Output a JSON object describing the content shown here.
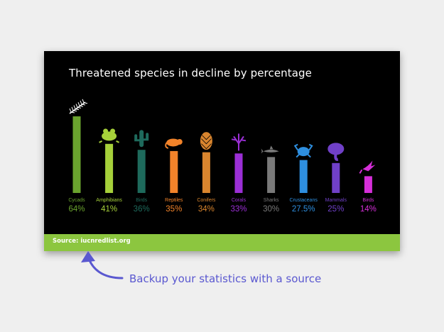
{
  "chart_data": {
    "type": "bar",
    "title": "Threatened species in decline by percentage",
    "categories": [
      "Cycads",
      "Amphibians",
      "Birds",
      "Reptiles",
      "Conifers",
      "Corals",
      "Sharks",
      "Crustaceans",
      "Mammals",
      "Birds"
    ],
    "values": [
      64,
      41,
      36,
      35,
      34,
      33,
      30,
      27.5,
      25,
      14
    ],
    "value_labels": [
      "64%",
      "41%",
      "36%",
      "35%",
      "34%",
      "33%",
      "30%",
      "27.5%",
      "25%",
      "14%"
    ],
    "colors": [
      "#6aa32e",
      "#a6d03a",
      "#1e6a5c",
      "#f2832a",
      "#d9852e",
      "#9b2fd6",
      "#7a7a7a",
      "#2e8fe0",
      "#7040c8",
      "#d62fd9"
    ],
    "icons": [
      "fern-icon",
      "frog-icon",
      "cactus-icon",
      "chameleon-icon",
      "pinecone-icon",
      "coral-icon",
      "shark-icon",
      "crab-icon",
      "elephant-icon",
      "bird-icon"
    ],
    "ylim": [
      0,
      64
    ],
    "grid": false,
    "legend": "none"
  },
  "source": "Source: iucnredlist.org",
  "caption": "Backup your statistics with a source",
  "colors": {
    "background": "#efefef",
    "slide": "#000000",
    "source_bar": "#8cc63f",
    "caption": "#5a58d0"
  }
}
